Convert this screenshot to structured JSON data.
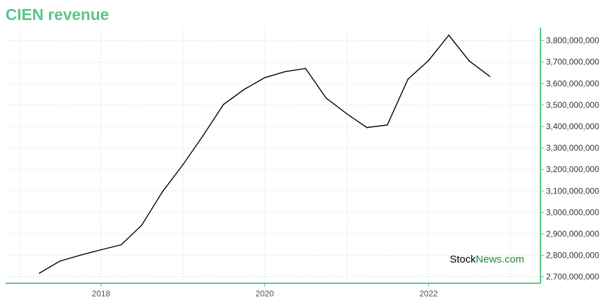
{
  "chart_data": {
    "type": "line",
    "title": "CIEN revenue",
    "xlabel": "",
    "ylabel": "",
    "x_ticks": [
      "2018",
      "2020",
      "2022"
    ],
    "y_ticks": [
      2700000000,
      2800000000,
      2900000000,
      3000000000,
      3100000000,
      3200000000,
      3300000000,
      3400000000,
      3500000000,
      3600000000,
      3700000000,
      3800000000
    ],
    "y_tick_labels": [
      "2,700,000,000",
      "2,800,000,000",
      "2,900,000,000",
      "3,000,000,000",
      "3,100,000,000",
      "3,200,000,000",
      "3,300,000,000",
      "3,400,000,000",
      "3,500,000,000",
      "3,600,000,000",
      "3,700,000,000",
      "3,800,000,000"
    ],
    "x": [
      "2017-04",
      "2017-07",
      "2017-10",
      "2018-01",
      "2018-04",
      "2018-07",
      "2018-10",
      "2019-01",
      "2019-04",
      "2019-07",
      "2019-10",
      "2020-01",
      "2020-04",
      "2020-07",
      "2020-10",
      "2021-01",
      "2021-04",
      "2021-07",
      "2021-10",
      "2022-01",
      "2022-04",
      "2022-07",
      "2022-10"
    ],
    "series": [
      {
        "values": [
          2717000000,
          2773000000,
          2801000000,
          2826000000,
          2849000000,
          2940000000,
          3095000000,
          3222000000,
          3357000000,
          3502000000,
          3572000000,
          3627000000,
          3655000000,
          3670000000,
          3532000000,
          3459000000,
          3395000000,
          3407000000,
          3620000000,
          3707000000,
          3825000000,
          3705000000,
          3633000000
        ]
      }
    ],
    "ylim": [
      2670000000,
      3860000000
    ],
    "grid": true,
    "legend": "none",
    "colors": {
      "line": "#000000",
      "axis": "#5bc48a",
      "grid": "#b8ddd0",
      "title": "#5bc48a"
    }
  },
  "watermark": {
    "part1": "Stock",
    "part2": "News",
    "part3": ".com"
  }
}
